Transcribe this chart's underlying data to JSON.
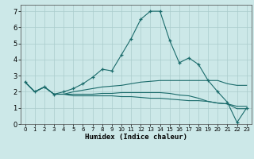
{
  "xlabel": "Humidex (Indice chaleur)",
  "bg_color": "#cce8e8",
  "grid_color": "#aacccc",
  "line_color": "#1a6b6b",
  "xlim": [
    -0.5,
    23.5
  ],
  "ylim": [
    0,
    7.4
  ],
  "xticks": [
    0,
    1,
    2,
    3,
    4,
    5,
    6,
    7,
    8,
    9,
    10,
    11,
    12,
    13,
    14,
    15,
    16,
    17,
    18,
    19,
    20,
    21,
    22,
    23
  ],
  "yticks": [
    0,
    1,
    2,
    3,
    4,
    5,
    6,
    7
  ],
  "series": [
    {
      "x": [
        0,
        1,
        2,
        3,
        4,
        5,
        6,
        7,
        8,
        9,
        10,
        11,
        12,
        13,
        14,
        15,
        16,
        17,
        18,
        19,
        20,
        21,
        22,
        23
      ],
      "y": [
        2.6,
        2.0,
        2.3,
        1.85,
        2.0,
        2.2,
        2.5,
        2.9,
        3.4,
        3.3,
        4.3,
        5.3,
        6.5,
        7.0,
        7.0,
        5.2,
        3.8,
        4.1,
        3.7,
        2.7,
        2.0,
        1.35,
        0.1,
        1.0
      ],
      "marker": "+"
    },
    {
      "x": [
        0,
        1,
        2,
        3,
        4,
        5,
        6,
        7,
        8,
        9,
        10,
        11,
        12,
        13,
        14,
        15,
        16,
        17,
        18,
        19,
        20,
        21,
        22,
        23
      ],
      "y": [
        2.6,
        2.0,
        2.3,
        1.85,
        1.85,
        2.0,
        2.1,
        2.2,
        2.3,
        2.35,
        2.4,
        2.5,
        2.6,
        2.65,
        2.7,
        2.7,
        2.7,
        2.7,
        2.7,
        2.7,
        2.7,
        2.5,
        2.4,
        2.4
      ],
      "marker": null
    },
    {
      "x": [
        0,
        1,
        2,
        3,
        4,
        5,
        6,
        7,
        8,
        9,
        10,
        11,
        12,
        13,
        14,
        15,
        16,
        17,
        18,
        19,
        20,
        21,
        22,
        23
      ],
      "y": [
        2.6,
        2.0,
        2.3,
        1.85,
        1.85,
        1.85,
        1.85,
        1.85,
        1.9,
        1.9,
        1.95,
        1.95,
        1.95,
        1.95,
        1.95,
        1.9,
        1.8,
        1.75,
        1.6,
        1.4,
        1.3,
        1.25,
        1.1,
        1.1
      ],
      "marker": null
    },
    {
      "x": [
        0,
        1,
        2,
        3,
        4,
        5,
        6,
        7,
        8,
        9,
        10,
        11,
        12,
        13,
        14,
        15,
        16,
        17,
        18,
        19,
        20,
        21,
        22,
        23
      ],
      "y": [
        2.6,
        2.0,
        2.3,
        1.85,
        1.85,
        1.75,
        1.75,
        1.75,
        1.75,
        1.75,
        1.7,
        1.7,
        1.65,
        1.6,
        1.6,
        1.55,
        1.5,
        1.45,
        1.45,
        1.4,
        1.3,
        1.25,
        0.95,
        0.95
      ],
      "marker": null
    }
  ]
}
